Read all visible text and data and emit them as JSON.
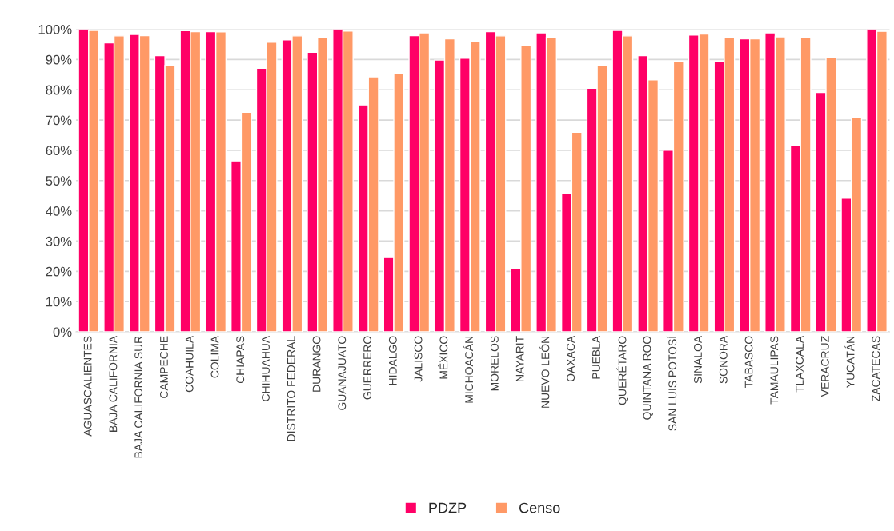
{
  "chart_data": {
    "type": "bar",
    "categories": [
      "AGUASCALIENTES",
      "BAJA CALIFORNIA",
      "BAJA CALIFORNIA SUR",
      "CAMPECHE",
      "COAHUILA",
      "COLIMA",
      "CHIAPAS",
      "CHIHUAHUA",
      "DISTRITO FEDERAL",
      "DURANGO",
      "GUANAJUATO",
      "GUERRERO",
      "HIDALGO",
      "JALISCO",
      "MÉXICO",
      "MICHOACÁN",
      "MORELOS",
      "NAYARIT",
      "NUEVO LEÓN",
      "OAXACA",
      "PUEBLA",
      "QUERÉTARO",
      "QUINTANA ROO",
      "SAN LUIS POTOSÍ",
      "SINALOA",
      "SONORA",
      "TABASCO",
      "TAMAULIPAS",
      "TLAXCALA",
      "VERACRUZ",
      "YUCATÁN",
      "ZACATECAS"
    ],
    "series": [
      {
        "name": "PDZP",
        "color": "#ff0066",
        "values": [
          100,
          95.5,
          98.3,
          91.3,
          99.5,
          99.2,
          56.5,
          87.1,
          96.5,
          92.4,
          100,
          75,
          24.8,
          97.9,
          89.8,
          90.4,
          99.2,
          21,
          98.8,
          45.8,
          80.5,
          99.6,
          91.3,
          60,
          98.1,
          89.3,
          96.8,
          98.8,
          61.5,
          79.1,
          44.2,
          100
        ]
      },
      {
        "name": "Censo",
        "color": "#ff9966",
        "values": [
          99.6,
          97.8,
          97.9,
          88,
          99.2,
          99.1,
          72.6,
          95.7,
          97.8,
          97.3,
          99.4,
          84.3,
          85.3,
          98.8,
          96.8,
          96.1,
          97.8,
          94.6,
          97.4,
          66,
          88.2,
          97.8,
          83.3,
          89.4,
          98.4,
          97.4,
          96.8,
          97.5,
          97.2,
          90.6,
          70.9,
          99.3
        ]
      }
    ],
    "ylim": [
      0,
      100
    ],
    "yticks": [
      {
        "value": 0,
        "label": "0%"
      },
      {
        "value": 10,
        "label": "10%"
      },
      {
        "value": 20,
        "label": "20%"
      },
      {
        "value": 30,
        "label": "30%"
      },
      {
        "value": 40,
        "label": "40%"
      },
      {
        "value": 50,
        "label": "50%"
      },
      {
        "value": 60,
        "label": "60%"
      },
      {
        "value": 70,
        "label": "70%"
      },
      {
        "value": 80,
        "label": "80%"
      },
      {
        "value": 90,
        "label": "90%"
      },
      {
        "value": 100,
        "label": "100%"
      }
    ],
    "grid": "y",
    "legend": "bottom"
  }
}
